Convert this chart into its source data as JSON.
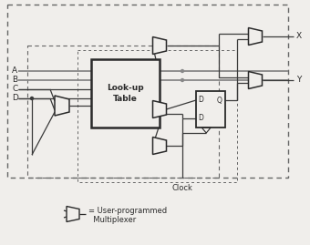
{
  "bg_color": "#f0eeeb",
  "box_color": "#2a2a2a",
  "line_color": "#3a3a3a",
  "dashed_color": "#666666",
  "lut_label": "Look-up\nTable",
  "inputs": [
    "A",
    "B",
    "C",
    "D"
  ],
  "outputs": [
    "X",
    "Y"
  ],
  "clock_label": "Clock",
  "legend_label1": "= User-programmed",
  "legend_label2": "  Multiplexer",
  "label_fontsize": 6.5,
  "small_fontsize": 5.5
}
